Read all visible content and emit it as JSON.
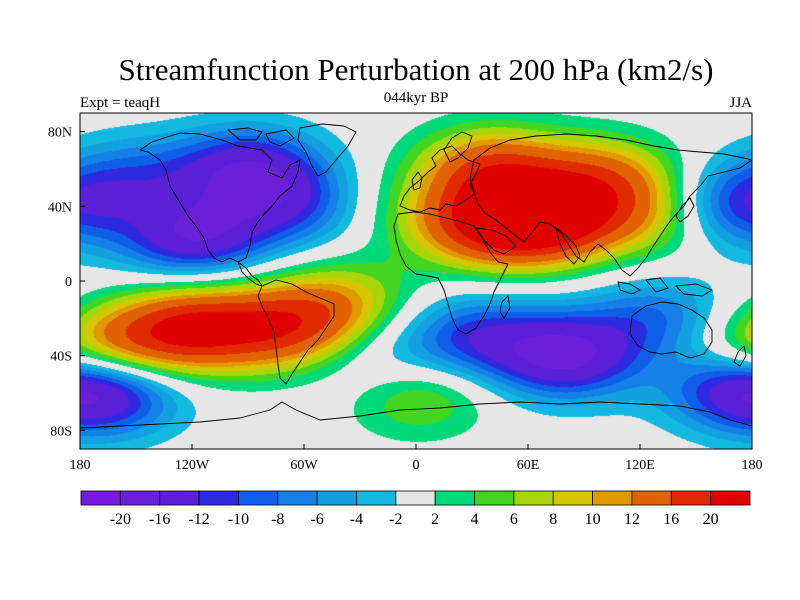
{
  "title": "Streamfunction Perturbation at 200 hPa (km2/s)",
  "left_subtitle": "Expt = teaqH",
  "center_subtitle": "044kyr BP",
  "right_subtitle": "JJA",
  "lat_labels": [
    "80N",
    "40N",
    "0",
    "40S",
    "80S"
  ],
  "lon_labels": [
    "180",
    "120W",
    "60W",
    "0",
    "60E",
    "120E",
    "180"
  ],
  "colorbar": {
    "labels": [
      "-20",
      "-16",
      "-12",
      "-10",
      "-8",
      "-6",
      "-4",
      "-2",
      "2",
      "4",
      "6",
      "8",
      "10",
      "12",
      "16",
      "20"
    ],
    "colors": [
      "#7a1ae0",
      "#6a20d8",
      "#5a1fd6",
      "#2d2ae0",
      "#0f5ee8",
      "#1480e8",
      "#13a0e0",
      "#13b8e0",
      "#e6e6e6",
      "#00d97a",
      "#42d622",
      "#a6d60a",
      "#d6c600",
      "#e09a00",
      "#e06200",
      "#e02a00",
      "#e00000"
    ]
  },
  "chart_data": {
    "type": "heatmap",
    "projection": "cylindrical equidistant",
    "lon_range": [
      -180,
      180
    ],
    "lat_range": [
      -90,
      90
    ],
    "blobs": [
      {
        "lon": -120,
        "lat": 25,
        "v": -16
      },
      {
        "lon": -90,
        "lat": 60,
        "v": -14
      },
      {
        "lon": -60,
        "lat": 40,
        "v": -10
      },
      {
        "lon": -150,
        "lat": 55,
        "v": -8
      },
      {
        "lon": 170,
        "lat": 40,
        "v": -12
      },
      {
        "lon": 170,
        "lat": -55,
        "v": -12
      },
      {
        "lon": -165,
        "lat": -60,
        "v": -12
      },
      {
        "lon": 80,
        "lat": -40,
        "v": -16
      },
      {
        "lon": 30,
        "lat": -30,
        "v": -10
      },
      {
        "lon": 130,
        "lat": -20,
        "v": -8
      },
      {
        "lon": -20,
        "lat": -45,
        "v": -5
      },
      {
        "lon": 70,
        "lat": 32,
        "v": 20
      },
      {
        "lon": 35,
        "lat": 30,
        "v": 15
      },
      {
        "lon": 40,
        "lat": 60,
        "v": 15
      },
      {
        "lon": 100,
        "lat": 55,
        "v": 12
      },
      {
        "lon": 130,
        "lat": 35,
        "v": 8
      },
      {
        "lon": -120,
        "lat": -25,
        "v": 18
      },
      {
        "lon": -70,
        "lat": -25,
        "v": 15
      },
      {
        "lon": -40,
        "lat": -10,
        "v": 8
      },
      {
        "lon": 0,
        "lat": -60,
        "v": 8
      },
      {
        "lon": -160,
        "lat": -35,
        "v": 10
      },
      {
        "lon": -140,
        "lat": 40,
        "v": 3
      },
      {
        "lon": -30,
        "lat": 40,
        "v": 4
      },
      {
        "lon": 170,
        "lat": -40,
        "v": 6
      }
    ]
  }
}
